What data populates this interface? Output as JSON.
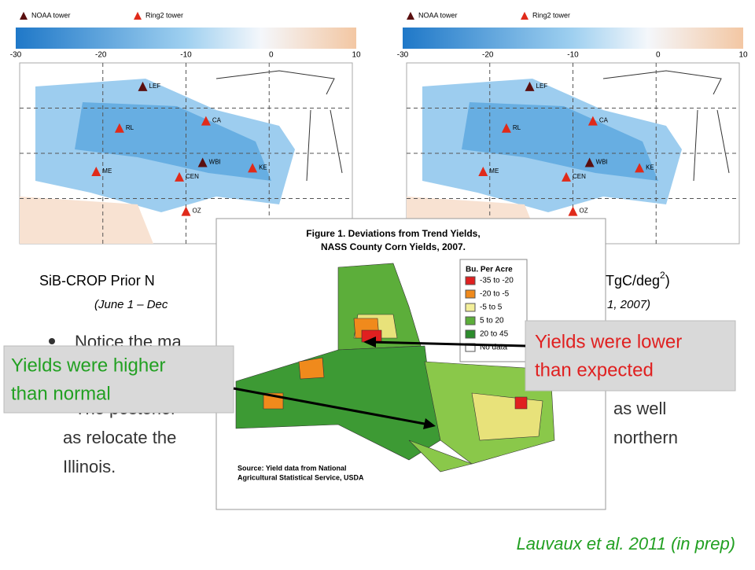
{
  "maps": [
    {
      "legend": {
        "noaa": "NOAA tower",
        "ring2": "Ring2 tower"
      },
      "ticks": [
        "-30",
        "-20",
        "-10",
        "0",
        "10"
      ],
      "stations": [
        "LEF",
        "CA",
        "RL",
        "WBI",
        "KE",
        "CEN",
        "ME",
        "OZ"
      ]
    },
    {
      "legend": {
        "noaa": "NOAA tower",
        "ring2": "Ring2 tower"
      },
      "ticks": [
        "-30",
        "-20",
        "-10",
        "0",
        "10"
      ],
      "stations": [
        "LEF",
        "CA",
        "RL",
        "WBI",
        "KE",
        "CEN",
        "ME",
        "OZ"
      ]
    }
  ],
  "caption": {
    "left": "SiB-CROP Prior N",
    "right_main": "TgC/deg",
    "right_sup": "2",
    "right_close": ")",
    "left_dates": "(June 1 – Dec",
    "right_dates": "1, 2007)"
  },
  "bullet": {
    "line1": "Notice the ma",
    "line2a": "The posterior",
    "line2b": "as well",
    "line3a": "as relocate the",
    "line3b": "northern",
    "line4": "Illinois."
  },
  "figure": {
    "title1": "Figure 1. Deviations from Trend Yields,",
    "title2": "NASS County Corn Yields, 2007.",
    "legend_title": "Bu. Per Acre",
    "legend": [
      "-35 to -20",
      "-20 to -5",
      "-5 to 5",
      "5 to 20",
      "20 to 45",
      "No data"
    ],
    "source1": "Source: Yield data from National",
    "source2": "Agricultural Statistical Service, USDA"
  },
  "callout_lower": [
    "Yields were lower",
    "than expected"
  ],
  "callout_higher": [
    "Yields were higher",
    "than normal"
  ],
  "citation": "Lauvaux et al. 2011 (in prep)"
}
